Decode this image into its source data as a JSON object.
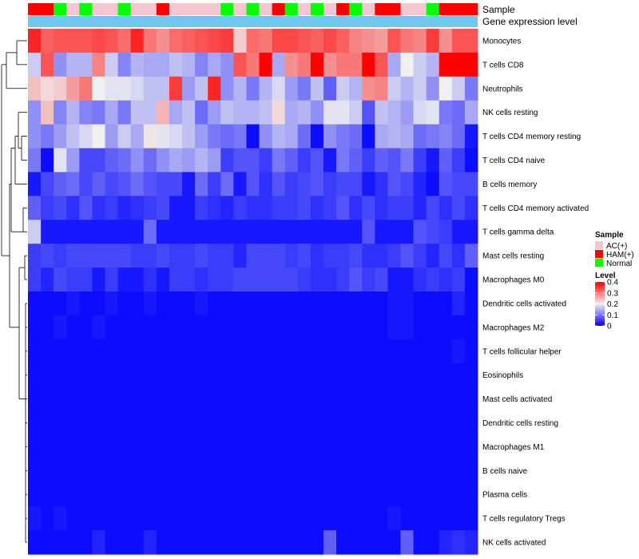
{
  "chart_data": {
    "type": "heatmap",
    "annotation_labels": {
      "sample": "Sample",
      "expression": "Gene expression level"
    },
    "legend_sample": {
      "title": "Sample",
      "entries": [
        {
          "key": "A",
          "label": "AC(+)",
          "color": "#f4c6cf"
        },
        {
          "key": "H",
          "label": "HAM(+)",
          "color": "#ff0000"
        },
        {
          "key": "N",
          "label": "Normal",
          "color": "#00ff00"
        }
      ]
    },
    "legend_level": {
      "title": "Level",
      "ticks": [
        "0.4",
        "0.3",
        "0.2",
        "0.1",
        "0"
      ],
      "range": [
        0,
        0.4
      ]
    },
    "colors": {
      "low": "#0000ff",
      "mid": "#f0f0f0",
      "high": "#ff0000",
      "expression_bar": "#70c8f0",
      "dendrogram": "#000000"
    },
    "sample_groups": [
      "H",
      "H",
      "N",
      "A",
      "N",
      "A",
      "A",
      "N",
      "A",
      "A",
      "H",
      "A",
      "A",
      "A",
      "A",
      "N",
      "A",
      "N",
      "A",
      "H",
      "N",
      "A",
      "N",
      "A",
      "H",
      "N",
      "A",
      "H",
      "H",
      "A",
      "A",
      "N",
      "H",
      "H",
      "H"
    ],
    "rows": [
      "Monocytes",
      "T cells CD8",
      "Neutrophils",
      "NK cells resting",
      "T cells CD4 memory resting",
      "T cells CD4 naive",
      "B cells memory",
      "T cells CD4 memory activated",
      "T cells gamma delta",
      "Mast cells resting",
      "Macrophages M0",
      "Dendritic cells activated",
      "Macrophages M2",
      "T cells follicular helper",
      "Eosinophils",
      "Mast cells activated",
      "Dendritic cells resting",
      "Macrophages M1",
      "B cells naive",
      "Plasma cells",
      "T cells regulatory  Tregs",
      "NK cells activated"
    ],
    "values": [
      [
        0.37,
        0.32,
        0.33,
        0.33,
        0.33,
        0.34,
        0.33,
        0.31,
        0.37,
        0.3,
        0.28,
        0.31,
        0.32,
        0.33,
        0.34,
        0.35,
        0.23,
        0.31,
        0.3,
        0.34,
        0.34,
        0.33,
        0.32,
        0.34,
        0.32,
        0.29,
        0.28,
        0.27,
        0.33,
        0.3,
        0.29,
        0.35,
        0.28,
        0.33,
        0.33
      ],
      [
        0.17,
        0.33,
        0.12,
        0.15,
        0.15,
        0.29,
        0.17,
        0.11,
        0.15,
        0.14,
        0.14,
        0.16,
        0.15,
        0.11,
        0.14,
        0.12,
        0.33,
        0.3,
        0.4,
        0.14,
        0.28,
        0.3,
        0.4,
        0.28,
        0.3,
        0.3,
        0.4,
        0.33,
        0.14,
        0.2,
        0.17,
        0.15,
        0.4,
        0.4,
        0.4
      ],
      [
        0.24,
        0.22,
        0.23,
        0.27,
        0.3,
        0.2,
        0.19,
        0.19,
        0.18,
        0.16,
        0.16,
        0.35,
        0.13,
        0.16,
        0.37,
        0.12,
        0.15,
        0.1,
        0.15,
        0.18,
        0.13,
        0.1,
        0.16,
        0.08,
        0.17,
        0.15,
        0.28,
        0.29,
        0.17,
        0.15,
        0.17,
        0.12,
        0.2,
        0.17,
        0.1
      ],
      [
        0.12,
        0.24,
        0.11,
        0.15,
        0.11,
        0.1,
        0.14,
        0.1,
        0.16,
        0.16,
        0.25,
        0.14,
        0.16,
        0.09,
        0.13,
        0.16,
        0.15,
        0.15,
        0.16,
        0.22,
        0.14,
        0.15,
        0.12,
        0.19,
        0.19,
        0.17,
        0.07,
        0.16,
        0.15,
        0.13,
        0.18,
        0.19,
        0.1,
        0.09,
        0.14
      ],
      [
        0.12,
        0.1,
        0.13,
        0.16,
        0.18,
        0.2,
        0.13,
        0.17,
        0.14,
        0.21,
        0.19,
        0.18,
        0.16,
        0.13,
        0.1,
        0.09,
        0.1,
        0.01,
        0.12,
        0.15,
        0.14,
        0.09,
        0.01,
        0.12,
        0.1,
        0.09,
        0.01,
        0.14,
        0.15,
        0.14,
        0.09,
        0.1,
        0.11,
        0.09,
        0.02
      ],
      [
        0.1,
        0.01,
        0.19,
        0.13,
        0.06,
        0.06,
        0.08,
        0.09,
        0.12,
        0.09,
        0.12,
        0.14,
        0.13,
        0.15,
        0.13,
        0.05,
        0.07,
        0.07,
        0.05,
        0.1,
        0.08,
        0.05,
        0.07,
        0.02,
        0.1,
        0.08,
        0.05,
        0.08,
        0.07,
        0.1,
        0.05,
        0.02,
        0.08,
        0.05,
        0.01
      ],
      [
        0.02,
        0.06,
        0.08,
        0.09,
        0.06,
        0.08,
        0.06,
        0.07,
        0.09,
        0.07,
        0.06,
        0.06,
        0.02,
        0.09,
        0.05,
        0.09,
        0.02,
        0.07,
        0.04,
        0.07,
        0.05,
        0.06,
        0.07,
        0.05,
        0.06,
        0.06,
        0.02,
        0.04,
        0.07,
        0.06,
        0.03,
        0.01,
        0.07,
        0.06,
        0.06
      ],
      [
        0.08,
        0.05,
        0.06,
        0.04,
        0.07,
        0.04,
        0.05,
        0.03,
        0.04,
        0.05,
        0.06,
        0.02,
        0.02,
        0.05,
        0.04,
        0.03,
        0.05,
        0.04,
        0.04,
        0.05,
        0.05,
        0.06,
        0.04,
        0.05,
        0.07,
        0.04,
        0.06,
        0.04,
        0.05,
        0.05,
        0.03,
        0.06,
        0.04,
        0.06,
        0.04
      ],
      [
        0.17,
        0.02,
        0.02,
        0.02,
        0.02,
        0.02,
        0.02,
        0.02,
        0.02,
        0.09,
        0.02,
        0.02,
        0.02,
        0.02,
        0.02,
        0.02,
        0.02,
        0.02,
        0.02,
        0.02,
        0.02,
        0.02,
        0.02,
        0.02,
        0.02,
        0.02,
        0.07,
        0.02,
        0.02,
        0.02,
        0.07,
        0.06,
        0.05,
        0.02,
        0.02
      ],
      [
        0.05,
        0.06,
        0.05,
        0.06,
        0.06,
        0.06,
        0.06,
        0.06,
        0.05,
        0.05,
        0.06,
        0.05,
        0.05,
        0.06,
        0.05,
        0.05,
        0.03,
        0.06,
        0.06,
        0.06,
        0.05,
        0.06,
        0.04,
        0.05,
        0.05,
        0.06,
        0.04,
        0.04,
        0.05,
        0.07,
        0.05,
        0.03,
        0.06,
        0.04,
        0.08
      ],
      [
        0.05,
        0.03,
        0.06,
        0.05,
        0.05,
        0.02,
        0.05,
        0.02,
        0.02,
        0.04,
        0.02,
        0.05,
        0.05,
        0.04,
        0.05,
        0.05,
        0.06,
        0.06,
        0.06,
        0.06,
        0.06,
        0.05,
        0.04,
        0.04,
        0.05,
        0.07,
        0.05,
        0.06,
        0.02,
        0.02,
        0.04,
        0.05,
        0.04,
        0.05,
        0.01
      ],
      [
        0.01,
        0.01,
        0.01,
        0.02,
        0.01,
        0.01,
        0.02,
        0.01,
        0.01,
        0.02,
        0.01,
        0.01,
        0.01,
        0.02,
        0.01,
        0.01,
        0.01,
        0.01,
        0.01,
        0.01,
        0.01,
        0.01,
        0.01,
        0.01,
        0.01,
        0.01,
        0.01,
        0.01,
        0.02,
        0.02,
        0.01,
        0.01,
        0.01,
        0.03,
        0.01
      ],
      [
        0.01,
        0.01,
        0.02,
        0.01,
        0.01,
        0.02,
        0.01,
        0.01,
        0.01,
        0.01,
        0.01,
        0.01,
        0.01,
        0.01,
        0.01,
        0.01,
        0.01,
        0.01,
        0.01,
        0.01,
        0.01,
        0.01,
        0.01,
        0.01,
        0.01,
        0.01,
        0.01,
        0.01,
        0.02,
        0.02,
        0.01,
        0.01,
        0.01,
        0.01,
        0.01
      ],
      [
        0.01,
        0.01,
        0.01,
        0.01,
        0.01,
        0.01,
        0.01,
        0.01,
        0.01,
        0.01,
        0.01,
        0.01,
        0.01,
        0.01,
        0.01,
        0.01,
        0.01,
        0.01,
        0.01,
        0.01,
        0.01,
        0.01,
        0.01,
        0.01,
        0.01,
        0.01,
        0.01,
        0.01,
        0.01,
        0.01,
        0.01,
        0.01,
        0.01,
        0.02,
        0.01
      ],
      [
        0.01,
        0.01,
        0.01,
        0.01,
        0.01,
        0.01,
        0.01,
        0.01,
        0.01,
        0.01,
        0.01,
        0.01,
        0.01,
        0.01,
        0.01,
        0.01,
        0.01,
        0.01,
        0.01,
        0.01,
        0.01,
        0.01,
        0.01,
        0.01,
        0.01,
        0.01,
        0.01,
        0.01,
        0.01,
        0.01,
        0.01,
        0.01,
        0.01,
        0.01,
        0.01
      ],
      [
        0.01,
        0.01,
        0.01,
        0.01,
        0.01,
        0.01,
        0.01,
        0.01,
        0.01,
        0.01,
        0.01,
        0.01,
        0.01,
        0.01,
        0.01,
        0.01,
        0.01,
        0.01,
        0.01,
        0.01,
        0.01,
        0.01,
        0.01,
        0.01,
        0.01,
        0.01,
        0.01,
        0.01,
        0.01,
        0.01,
        0.01,
        0.01,
        0.01,
        0.01,
        0.01
      ],
      [
        0.01,
        0.01,
        0.01,
        0.01,
        0.01,
        0.01,
        0.01,
        0.01,
        0.01,
        0.01,
        0.01,
        0.01,
        0.01,
        0.01,
        0.01,
        0.01,
        0.01,
        0.01,
        0.01,
        0.01,
        0.01,
        0.01,
        0.01,
        0.01,
        0.01,
        0.01,
        0.01,
        0.01,
        0.01,
        0.01,
        0.01,
        0.01,
        0.01,
        0.01,
        0.01
      ],
      [
        0.01,
        0.01,
        0.01,
        0.01,
        0.01,
        0.01,
        0.01,
        0.01,
        0.01,
        0.01,
        0.01,
        0.01,
        0.01,
        0.01,
        0.01,
        0.01,
        0.01,
        0.01,
        0.01,
        0.01,
        0.01,
        0.01,
        0.01,
        0.01,
        0.01,
        0.01,
        0.01,
        0.01,
        0.01,
        0.01,
        0.01,
        0.01,
        0.01,
        0.01,
        0.01
      ],
      [
        0.01,
        0.01,
        0.01,
        0.01,
        0.01,
        0.01,
        0.01,
        0.01,
        0.01,
        0.01,
        0.01,
        0.01,
        0.01,
        0.01,
        0.01,
        0.01,
        0.01,
        0.01,
        0.01,
        0.01,
        0.01,
        0.01,
        0.01,
        0.01,
        0.01,
        0.01,
        0.01,
        0.01,
        0.01,
        0.01,
        0.01,
        0.01,
        0.01,
        0.01,
        0.01
      ],
      [
        0.01,
        0.01,
        0.01,
        0.01,
        0.01,
        0.01,
        0.01,
        0.01,
        0.01,
        0.01,
        0.01,
        0.01,
        0.01,
        0.01,
        0.01,
        0.01,
        0.01,
        0.01,
        0.01,
        0.01,
        0.01,
        0.01,
        0.01,
        0.01,
        0.01,
        0.01,
        0.01,
        0.01,
        0.01,
        0.01,
        0.01,
        0.01,
        0.01,
        0.01,
        0.01
      ],
      [
        0.02,
        0.01,
        0.02,
        0.01,
        0.01,
        0.01,
        0.01,
        0.01,
        0.01,
        0.01,
        0.01,
        0.01,
        0.01,
        0.01,
        0.01,
        0.01,
        0.01,
        0.01,
        0.01,
        0.01,
        0.01,
        0.01,
        0.01,
        0.01,
        0.01,
        0.01,
        0.01,
        0.01,
        0.02,
        0.01,
        0.01,
        0.01,
        0.01,
        0.01,
        0.01
      ],
      [
        0.01,
        0.01,
        0.01,
        0.01,
        0.01,
        0.03,
        0.01,
        0.01,
        0.01,
        0.03,
        0.01,
        0.01,
        0.01,
        0.01,
        0.01,
        0.01,
        0.01,
        0.01,
        0.01,
        0.01,
        0.01,
        0.01,
        0.01,
        0.08,
        0.01,
        0.01,
        0.01,
        0.01,
        0.01,
        0.08,
        0.01,
        0.01,
        0.03,
        0.04,
        0.03
      ]
    ]
  }
}
